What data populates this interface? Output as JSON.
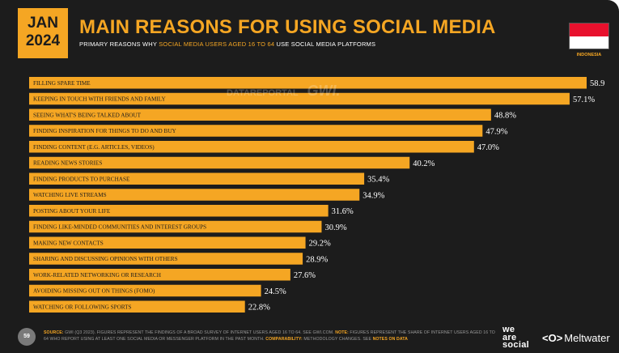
{
  "header": {
    "month": "JAN",
    "year": "2024",
    "title": "MAIN REASONS FOR USING SOCIAL MEDIA",
    "subtitle_prefix": "PRIMARY REASONS WHY",
    "subtitle_highlight": "SOCIAL MEDIA USERS AGED 16 TO 64",
    "subtitle_suffix": "USE SOCIAL MEDIA PLATFORMS",
    "country": "INDONESIA",
    "watermark_left": "DATAREPORTAL",
    "watermark_right": "GWI."
  },
  "chart_data": {
    "type": "bar",
    "orientation": "horizontal",
    "categories": [
      "FILLING SPARE TIME",
      "KEEPING IN TOUCH WITH FRIENDS AND FAMILY",
      "SEEING WHAT'S BEING TALKED ABOUT",
      "FINDING INSPIRATION FOR THINGS TO DO AND BUY",
      "FINDING CONTENT (E.G. ARTICLES, VIDEOS)",
      "READING NEWS STORIES",
      "FINDING PRODUCTS TO PURCHASE",
      "WATCHING LIVE STREAMS",
      "POSTING ABOUT YOUR LIFE",
      "FINDING LIKE-MINDED COMMUNITIES AND INTEREST GROUPS",
      "MAKING NEW CONTACTS",
      "SHARING AND DISCUSSING OPINIONS WITH OTHERS",
      "WORK-RELATED NETWORKING OR RESEARCH",
      "AVOIDING MISSING OUT ON THINGS (FOMO)",
      "WATCHING OR FOLLOWING SPORTS"
    ],
    "values": [
      58.9,
      57.1,
      48.8,
      47.9,
      47.0,
      40.2,
      35.4,
      34.9,
      31.6,
      30.9,
      29.2,
      28.9,
      27.6,
      24.5,
      22.8
    ],
    "value_labels": [
      "58.9",
      "57.1%",
      "48.8%",
      "47.9%",
      "47.0%",
      "40.2%",
      "35.4%",
      "34.9%",
      "31.6%",
      "30.9%",
      "29.2%",
      "28.9%",
      "27.6%",
      "24.5%",
      "22.8%"
    ],
    "xlim": [
      0,
      58.9
    ],
    "bar_color": "#f5a623",
    "grid": false
  },
  "footer": {
    "page": "59",
    "source_key": "SOURCE:",
    "source_text": "GWI (Q3 2023). FIGURES REPRESENT THE FINDINGS OF A BROAD SURVEY OF INTERNET USERS AGED 16 TO 64. SEE GWI.COM.",
    "note_key": "NOTE:",
    "note_text": "FIGURES REPRESENT THE SHARE OF INTERNET USERS AGED 16 TO 64 WHO REPORT USING AT LEAST ONE SOCIAL MEDIA OR MESSENGER PLATFORM IN THE PAST MONTH.",
    "comp_key": "COMPARABILITY:",
    "comp_text": "METHODOLOGY CHANGES. SEE",
    "notes_link": "NOTES ON DATA",
    "logo_was_1": "we",
    "logo_was_2": "are",
    "logo_was_3": "social",
    "logo_mw_symbol": "<O>",
    "logo_mw_name": "Meltwater"
  },
  "colors": {
    "background": "#1c1c1c",
    "accent": "#f5a623",
    "flag_red": "#e8112d",
    "flag_white": "#ffffff"
  }
}
